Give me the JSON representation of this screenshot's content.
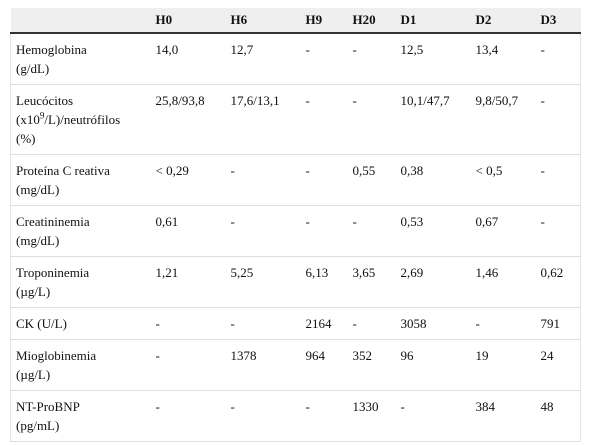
{
  "table": {
    "columns": [
      "H0",
      "H6",
      "H9",
      "H20",
      "D1",
      "D2",
      "D3"
    ],
    "rows": [
      {
        "label": [
          "Hemoglobina",
          "(g/dL)"
        ],
        "values": [
          "14,0",
          "12,7",
          "-",
          "-",
          "12,5",
          "13,4",
          "-"
        ]
      },
      {
        "label": [
          "Leucócitos",
          [
            "(x10",
            {
              "sup": "9"
            },
            "/L)/neutrófilos"
          ],
          "(%)"
        ],
        "values": [
          "25,8/93,8",
          "17,6/13,1",
          "-",
          "-",
          "10,1/47,7",
          "9,8/50,7",
          "-"
        ]
      },
      {
        "label": [
          "Proteína C reativa",
          "(mg/dL)"
        ],
        "values": [
          "< 0,29",
          "-",
          "-",
          "0,55",
          "0,38",
          "< 0,5",
          "-"
        ]
      },
      {
        "label": [
          "Creatininemia",
          "(mg/dL)"
        ],
        "values": [
          "0,61",
          "-",
          "-",
          "-",
          "0,53",
          "0,67",
          "-"
        ]
      },
      {
        "label": [
          "Troponinemia",
          "(µg/L)"
        ],
        "values": [
          "1,21",
          "5,25",
          "6,13",
          "3,65",
          "2,69",
          "1,46",
          "0,62"
        ]
      },
      {
        "label": [
          "CK (U/L)"
        ],
        "values": [
          "-",
          "-",
          "2164",
          "-",
          "3058",
          "-",
          "791"
        ]
      },
      {
        "label": [
          "Mioglobinemia",
          "(µg/L)"
        ],
        "values": [
          "-",
          "1378",
          "964",
          "352",
          "96",
          "19",
          "24"
        ]
      },
      {
        "label": [
          "NT-ProBNP",
          "(pg/mL)"
        ],
        "values": [
          "-",
          "-",
          "-",
          "1330",
          "-",
          "384",
          "48"
        ]
      }
    ]
  }
}
